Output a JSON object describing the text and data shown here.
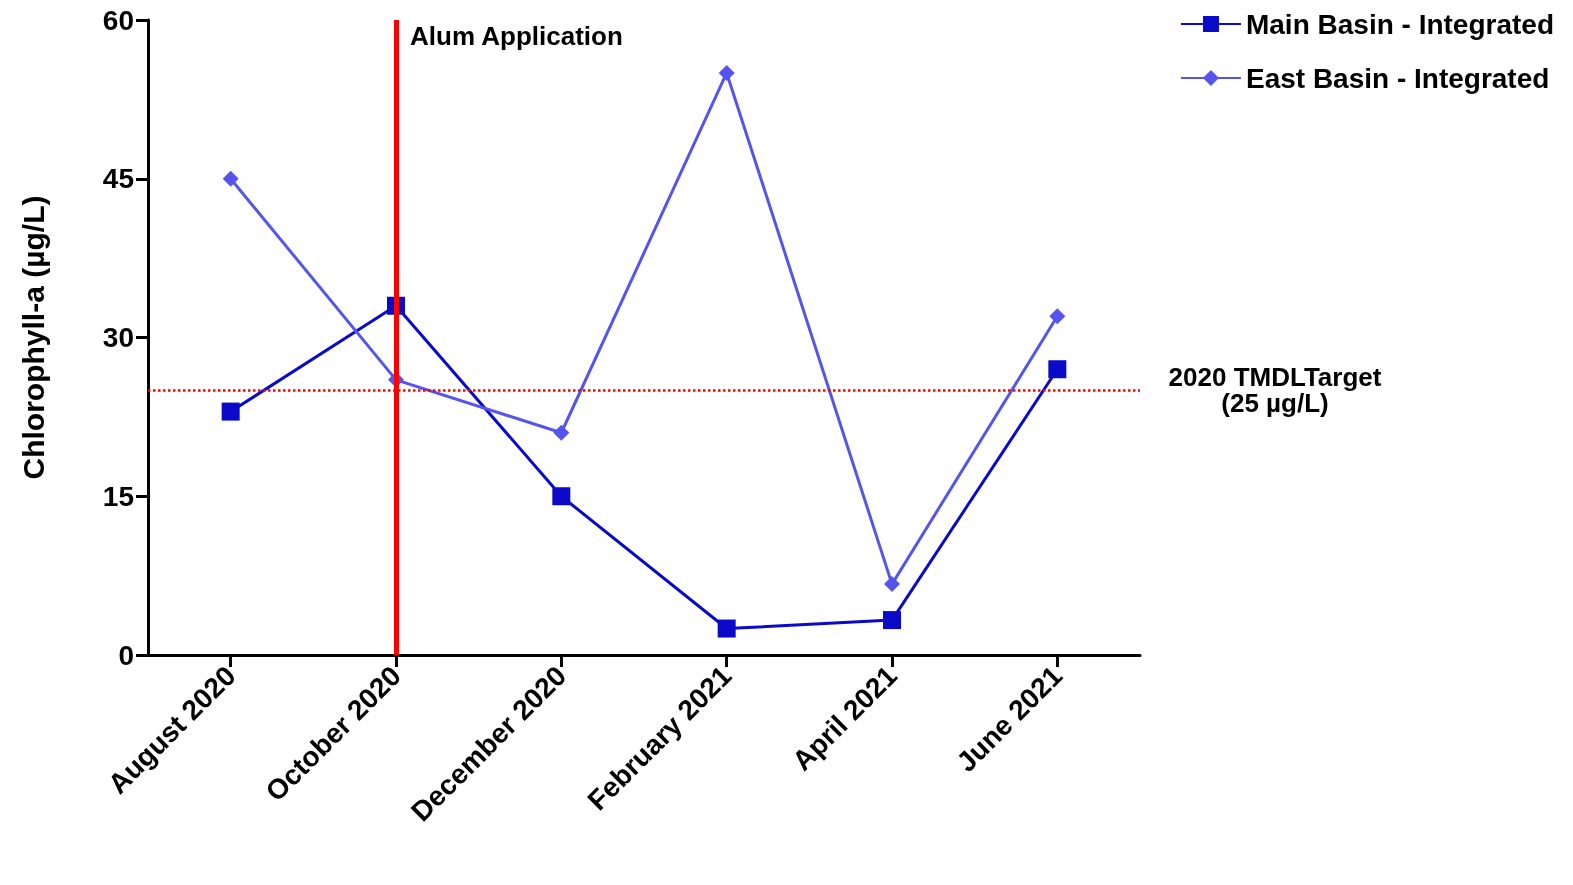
{
  "chart_data": {
    "type": "line",
    "ylabel": "Chlorophyll-a (µg/L)",
    "categories": [
      "August 2020",
      "October 2020",
      "December 2020",
      "February 2021",
      "April 2021",
      "June 2021"
    ],
    "series": [
      {
        "name": "Main Basin - Integrated",
        "color": "#0a0ac8",
        "marker": "square",
        "values": [
          23,
          33,
          15,
          2.5,
          3.3,
          27
        ]
      },
      {
        "name": "East Basin - Integrated",
        "color": "#5555ee",
        "marker": "diamond",
        "values": [
          45,
          26,
          21,
          55,
          6.7,
          32
        ]
      }
    ],
    "ref_lines": [
      {
        "axis": "x",
        "value": "October 2020",
        "label": "Alum Application",
        "color": "#ff0000",
        "line_style": "solid"
      },
      {
        "axis": "y",
        "value": 25,
        "label": "2020 TMDLTarget\n(25 µg/L)",
        "color": "#ff0000",
        "line_style": "dotted"
      }
    ],
    "ylim": [
      0,
      60
    ],
    "yticks": [
      0,
      15,
      30,
      45,
      60
    ],
    "grid": false,
    "legend": "top right"
  }
}
